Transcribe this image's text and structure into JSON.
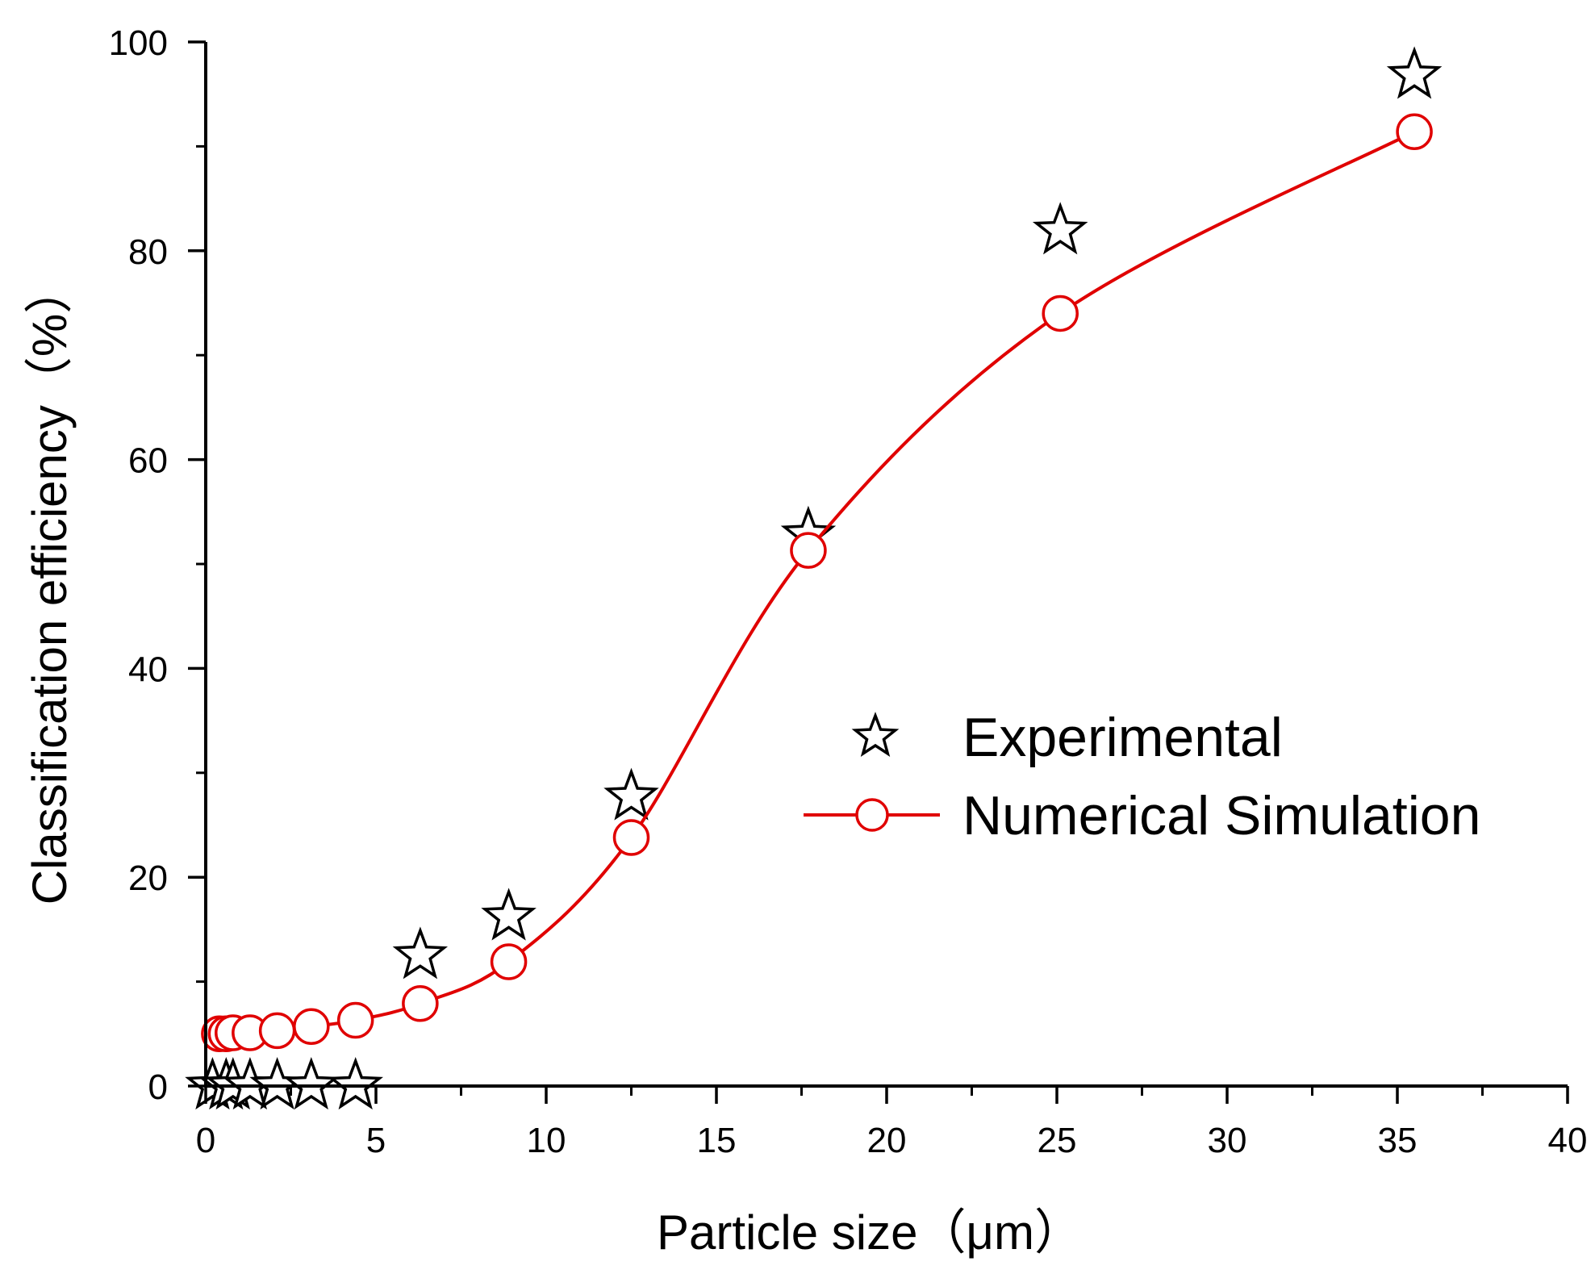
{
  "chart_data": {
    "type": "scatter",
    "xlabel": "Particle size（μm）",
    "ylabel": "Classification efficiency（%）",
    "xlim": [
      0,
      40
    ],
    "ylim": [
      0,
      100
    ],
    "xticks": [
      0,
      5,
      10,
      15,
      20,
      25,
      30,
      35,
      40
    ],
    "yticks": [
      0,
      20,
      40,
      60,
      80,
      100
    ],
    "grid": false,
    "legend_position": "center-right",
    "series": [
      {
        "name": "Experimental",
        "marker": "star",
        "line": false,
        "color": "#000000",
        "x": [
          0.2,
          0.6,
          0.8,
          1.3,
          2.1,
          3.1,
          4.4,
          6.3,
          8.9,
          12.5,
          17.7,
          25.1,
          35.5
        ],
        "y": [
          0,
          0,
          0,
          0,
          0,
          0,
          0,
          12.5,
          16.2,
          27.7,
          52.8,
          81.9,
          96.8
        ]
      },
      {
        "name": "Numerical Simulation",
        "marker": "circle",
        "line": true,
        "color": "#e00000",
        "x": [
          0.4,
          0.6,
          0.8,
          1.3,
          2.1,
          3.1,
          4.4,
          6.3,
          8.9,
          12.5,
          17.7,
          25.1,
          35.5
        ],
        "y": [
          5.0,
          5.0,
          5.1,
          5.1,
          5.3,
          5.7,
          6.3,
          7.9,
          11.9,
          23.8,
          51.3,
          74.0,
          91.4
        ]
      }
    ]
  }
}
